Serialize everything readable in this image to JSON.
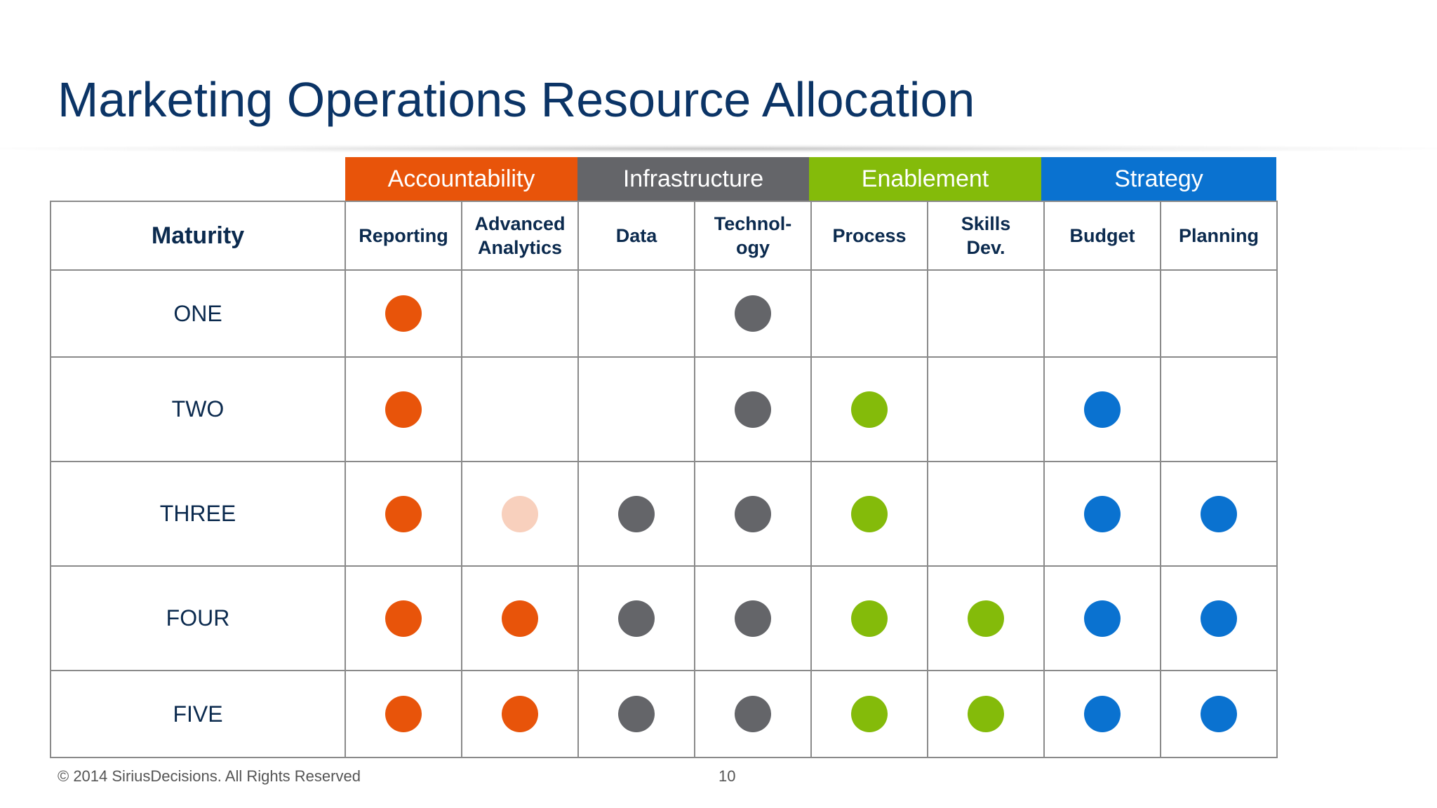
{
  "title": "Marketing Operations Resource Allocation",
  "colors": {
    "accountability": "#e8540a",
    "accountability_light": "#f8d0bd",
    "infrastructure": "#646569",
    "enablement": "#84bb0a",
    "strategy": "#0a72d0"
  },
  "groups": [
    {
      "label": "Accountability",
      "color": "#e8540a"
    },
    {
      "label": "Infrastructure",
      "color": "#646569"
    },
    {
      "label": "Enablement",
      "color": "#84bb0a"
    },
    {
      "label": "Strategy",
      "color": "#0a72d0"
    }
  ],
  "table": {
    "maturity_header": "Maturity",
    "columns": [
      {
        "line1": "Reporting",
        "line2": "",
        "group": "Accountability"
      },
      {
        "line1": "Advanced",
        "line2": "Analytics",
        "group": "Accountability"
      },
      {
        "line1": "Data",
        "line2": "",
        "group": "Infrastructure"
      },
      {
        "line1": "Technol-",
        "line2": "ogy",
        "group": "Infrastructure"
      },
      {
        "line1": "Process",
        "line2": "",
        "group": "Enablement"
      },
      {
        "line1": "Skills",
        "line2": "Dev.",
        "group": "Enablement"
      },
      {
        "line1": "Budget",
        "line2": "",
        "group": "Strategy"
      },
      {
        "line1": "Planning",
        "line2": "",
        "group": "Strategy"
      }
    ],
    "rows": [
      {
        "label": "ONE",
        "cells": [
          "full",
          "none",
          "none",
          "full",
          "none",
          "none",
          "none",
          "none"
        ]
      },
      {
        "label": "TWO",
        "cells": [
          "full",
          "none",
          "none",
          "full",
          "full",
          "none",
          "full",
          "none"
        ]
      },
      {
        "label": "THREE",
        "cells": [
          "full",
          "light",
          "full",
          "full",
          "full",
          "none",
          "full",
          "full"
        ]
      },
      {
        "label": "FOUR",
        "cells": [
          "full",
          "full",
          "full",
          "full",
          "full",
          "full",
          "full",
          "full"
        ]
      },
      {
        "label": "FIVE",
        "cells": [
          "full",
          "full",
          "full",
          "full",
          "full",
          "full",
          "full",
          "full"
        ]
      }
    ]
  },
  "footer": {
    "copyright": "© 2014 SiriusDecisions. All Rights Reserved",
    "page_number": "10"
  }
}
